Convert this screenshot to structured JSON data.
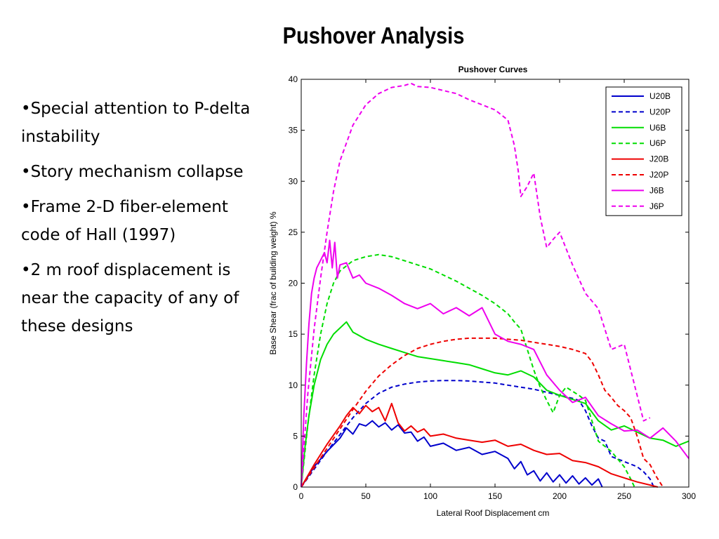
{
  "slide": {
    "title": "Pushover Analysis",
    "bullets": [
      "•Special attention to P-delta instability",
      "•Story mechanism collapse",
      "•Frame 2-D fiber-element code of Hall (1997)",
      "•2 m roof displacement is near the capacity of any of these designs"
    ]
  },
  "chart_data": {
    "type": "line",
    "title": "Pushover Curves",
    "xlabel": "Lateral Roof Displacement  cm",
    "ylabel": "Base Shear (frac of building weight)  %",
    "xlim": [
      0,
      300
    ],
    "ylim": [
      0,
      40
    ],
    "xticks": [
      0,
      50,
      100,
      150,
      200,
      250,
      300
    ],
    "yticks": [
      0,
      5,
      10,
      15,
      20,
      25,
      30,
      35,
      40
    ],
    "grid": false,
    "legend_position": "top-right",
    "series": [
      {
        "name": "U20B",
        "color": "#0000cc",
        "dash": "solid",
        "x": [
          0,
          10,
          20,
          30,
          35,
          40,
          45,
          50,
          55,
          60,
          65,
          70,
          75,
          80,
          85,
          90,
          95,
          100,
          110,
          120,
          130,
          140,
          150,
          160,
          165,
          170,
          175,
          180,
          185,
          190,
          195,
          200,
          205,
          210,
          215,
          220,
          225,
          230,
          233
        ],
        "y": [
          0,
          2,
          3.5,
          4.8,
          5.8,
          5.2,
          6.2,
          6,
          6.5,
          5.9,
          6.3,
          5.6,
          6.1,
          5.3,
          5.4,
          4.5,
          4.9,
          4,
          4.3,
          3.6,
          3.9,
          3.2,
          3.5,
          2.8,
          1.8,
          2.5,
          1.2,
          1.6,
          0.6,
          1.4,
          0.5,
          1.2,
          0.4,
          1.1,
          0.3,
          0.9,
          0.2,
          0.8,
          0
        ]
      },
      {
        "name": "U20P",
        "color": "#0000cc",
        "dash": "dashed",
        "x": [
          0,
          20,
          40,
          50,
          60,
          70,
          80,
          90,
          100,
          110,
          120,
          130,
          140,
          150,
          160,
          170,
          180,
          190,
          200,
          210,
          215,
          220,
          225,
          230,
          235,
          240,
          250,
          260,
          265,
          270,
          273
        ],
        "y": [
          0,
          3.5,
          6.8,
          8.2,
          9.2,
          9.8,
          10.1,
          10.3,
          10.4,
          10.45,
          10.45,
          10.4,
          10.3,
          10.2,
          10,
          9.8,
          9.6,
          9.3,
          9,
          8.7,
          8.5,
          7.5,
          6,
          4.8,
          4.5,
          3,
          2.5,
          2,
          1.5,
          0.8,
          0
        ]
      },
      {
        "name": "U6B",
        "color": "#00dd00",
        "dash": "solid",
        "x": [
          0,
          3,
          6,
          10,
          15,
          20,
          25,
          30,
          35,
          40,
          50,
          60,
          70,
          80,
          90,
          100,
          110,
          120,
          130,
          140,
          150,
          160,
          170,
          180,
          190,
          200,
          210,
          220,
          230,
          240,
          250,
          260,
          270,
          280,
          290,
          300
        ],
        "y": [
          0,
          4,
          7,
          10,
          12.5,
          14,
          15,
          15.6,
          16.2,
          15.2,
          14.5,
          14,
          13.6,
          13.2,
          12.8,
          12.6,
          12.4,
          12.2,
          12,
          11.6,
          11.2,
          11,
          11.4,
          10.8,
          9.5,
          9,
          8.6,
          8.2,
          6.5,
          5.6,
          6,
          5.4,
          4.8,
          4.6,
          4,
          4.5
        ]
      },
      {
        "name": "U6P",
        "color": "#00dd00",
        "dash": "dashed",
        "x": [
          0,
          5,
          10,
          15,
          20,
          25,
          30,
          40,
          50,
          60,
          70,
          80,
          90,
          100,
          110,
          120,
          130,
          140,
          150,
          160,
          165,
          170,
          175,
          180,
          185,
          190,
          195,
          200,
          205,
          210,
          215,
          220,
          225,
          230,
          240,
          250,
          255,
          258
        ],
        "y": [
          0,
          6,
          11,
          15,
          18,
          20,
          21.2,
          22.2,
          22.6,
          22.8,
          22.6,
          22.2,
          21.8,
          21.4,
          20.8,
          20.2,
          19.5,
          18.8,
          18,
          17,
          16.2,
          15.5,
          13.5,
          11.5,
          9.8,
          8.5,
          7.3,
          9,
          9.8,
          9.4,
          9,
          8.5,
          6.5,
          4.5,
          3.5,
          2,
          0.8,
          0
        ]
      },
      {
        "name": "J20B",
        "color": "#ee0000",
        "dash": "solid",
        "x": [
          0,
          10,
          20,
          30,
          35,
          40,
          45,
          50,
          55,
          60,
          65,
          70,
          75,
          80,
          85,
          90,
          95,
          100,
          110,
          120,
          130,
          140,
          150,
          160,
          170,
          180,
          190,
          200,
          210,
          220,
          230,
          240,
          250,
          260,
          270,
          276
        ],
        "y": [
          0,
          2.2,
          4.2,
          6,
          7,
          7.8,
          7.2,
          8,
          7.4,
          7.8,
          6.5,
          8.2,
          6.3,
          5.5,
          6,
          5.4,
          5.7,
          5,
          5.2,
          4.8,
          4.6,
          4.4,
          4.6,
          4,
          4.2,
          3.6,
          3.2,
          3.3,
          2.6,
          2.4,
          2,
          1.3,
          0.9,
          0.5,
          0.2,
          0
        ]
      },
      {
        "name": "J20P",
        "color": "#ee0000",
        "dash": "dashed",
        "x": [
          0,
          20,
          40,
          50,
          60,
          70,
          80,
          90,
          100,
          110,
          120,
          130,
          140,
          150,
          160,
          170,
          180,
          190,
          200,
          210,
          220,
          225,
          230,
          235,
          240,
          245,
          250,
          255,
          260,
          265,
          270,
          275,
          280
        ],
        "y": [
          0,
          3.8,
          7.6,
          9.4,
          10.9,
          12,
          12.9,
          13.6,
          14,
          14.3,
          14.5,
          14.6,
          14.6,
          14.6,
          14.5,
          14.4,
          14.2,
          14,
          13.8,
          13.5,
          13.1,
          12.3,
          11,
          9.5,
          8.8,
          8,
          7.5,
          6.8,
          5,
          2.8,
          2.2,
          1,
          0
        ]
      },
      {
        "name": "J6B",
        "color": "#ee00ee",
        "dash": "solid",
        "x": [
          0,
          2,
          4,
          6,
          8,
          10,
          12,
          14,
          16,
          18,
          20,
          22,
          24,
          26,
          28,
          30,
          35,
          40,
          45,
          50,
          60,
          70,
          80,
          90,
          100,
          110,
          120,
          130,
          140,
          150,
          160,
          170,
          180,
          190,
          200,
          210,
          220,
          230,
          240,
          250,
          260,
          270,
          280,
          290,
          300
        ],
        "y": [
          0,
          7,
          12,
          16,
          19,
          20.5,
          21.5,
          22,
          22.5,
          23,
          22,
          24.2,
          21.5,
          24,
          20.5,
          21.8,
          22,
          20.5,
          20.8,
          20,
          19.5,
          18.8,
          18,
          17.5,
          18,
          17,
          17.6,
          16.8,
          17.6,
          15,
          14.3,
          14,
          13.5,
          11,
          9.5,
          8.3,
          8.8,
          7,
          6.2,
          5.5,
          5.6,
          4.8,
          5.8,
          4.5,
          2.8
        ]
      },
      {
        "name": "J6P",
        "color": "#ee00ee",
        "dash": "dashed",
        "x": [
          0,
          5,
          10,
          15,
          20,
          25,
          30,
          40,
          50,
          60,
          70,
          80,
          85,
          90,
          100,
          110,
          120,
          130,
          140,
          150,
          160,
          165,
          168,
          170,
          175,
          180,
          185,
          190,
          195,
          200,
          210,
          220,
          230,
          240,
          250,
          260,
          265,
          270
        ],
        "y": [
          0,
          9,
          15.5,
          20.5,
          25,
          29,
          32,
          35.5,
          37.5,
          38.6,
          39.2,
          39.4,
          39.6,
          39.3,
          39.2,
          38.9,
          38.6,
          38,
          37.5,
          37,
          36,
          33.5,
          31,
          28.5,
          29.5,
          30.8,
          26.5,
          23.5,
          24.3,
          25,
          21.8,
          19,
          17.5,
          13.5,
          14,
          9,
          6.5,
          6.8
        ]
      }
    ]
  }
}
